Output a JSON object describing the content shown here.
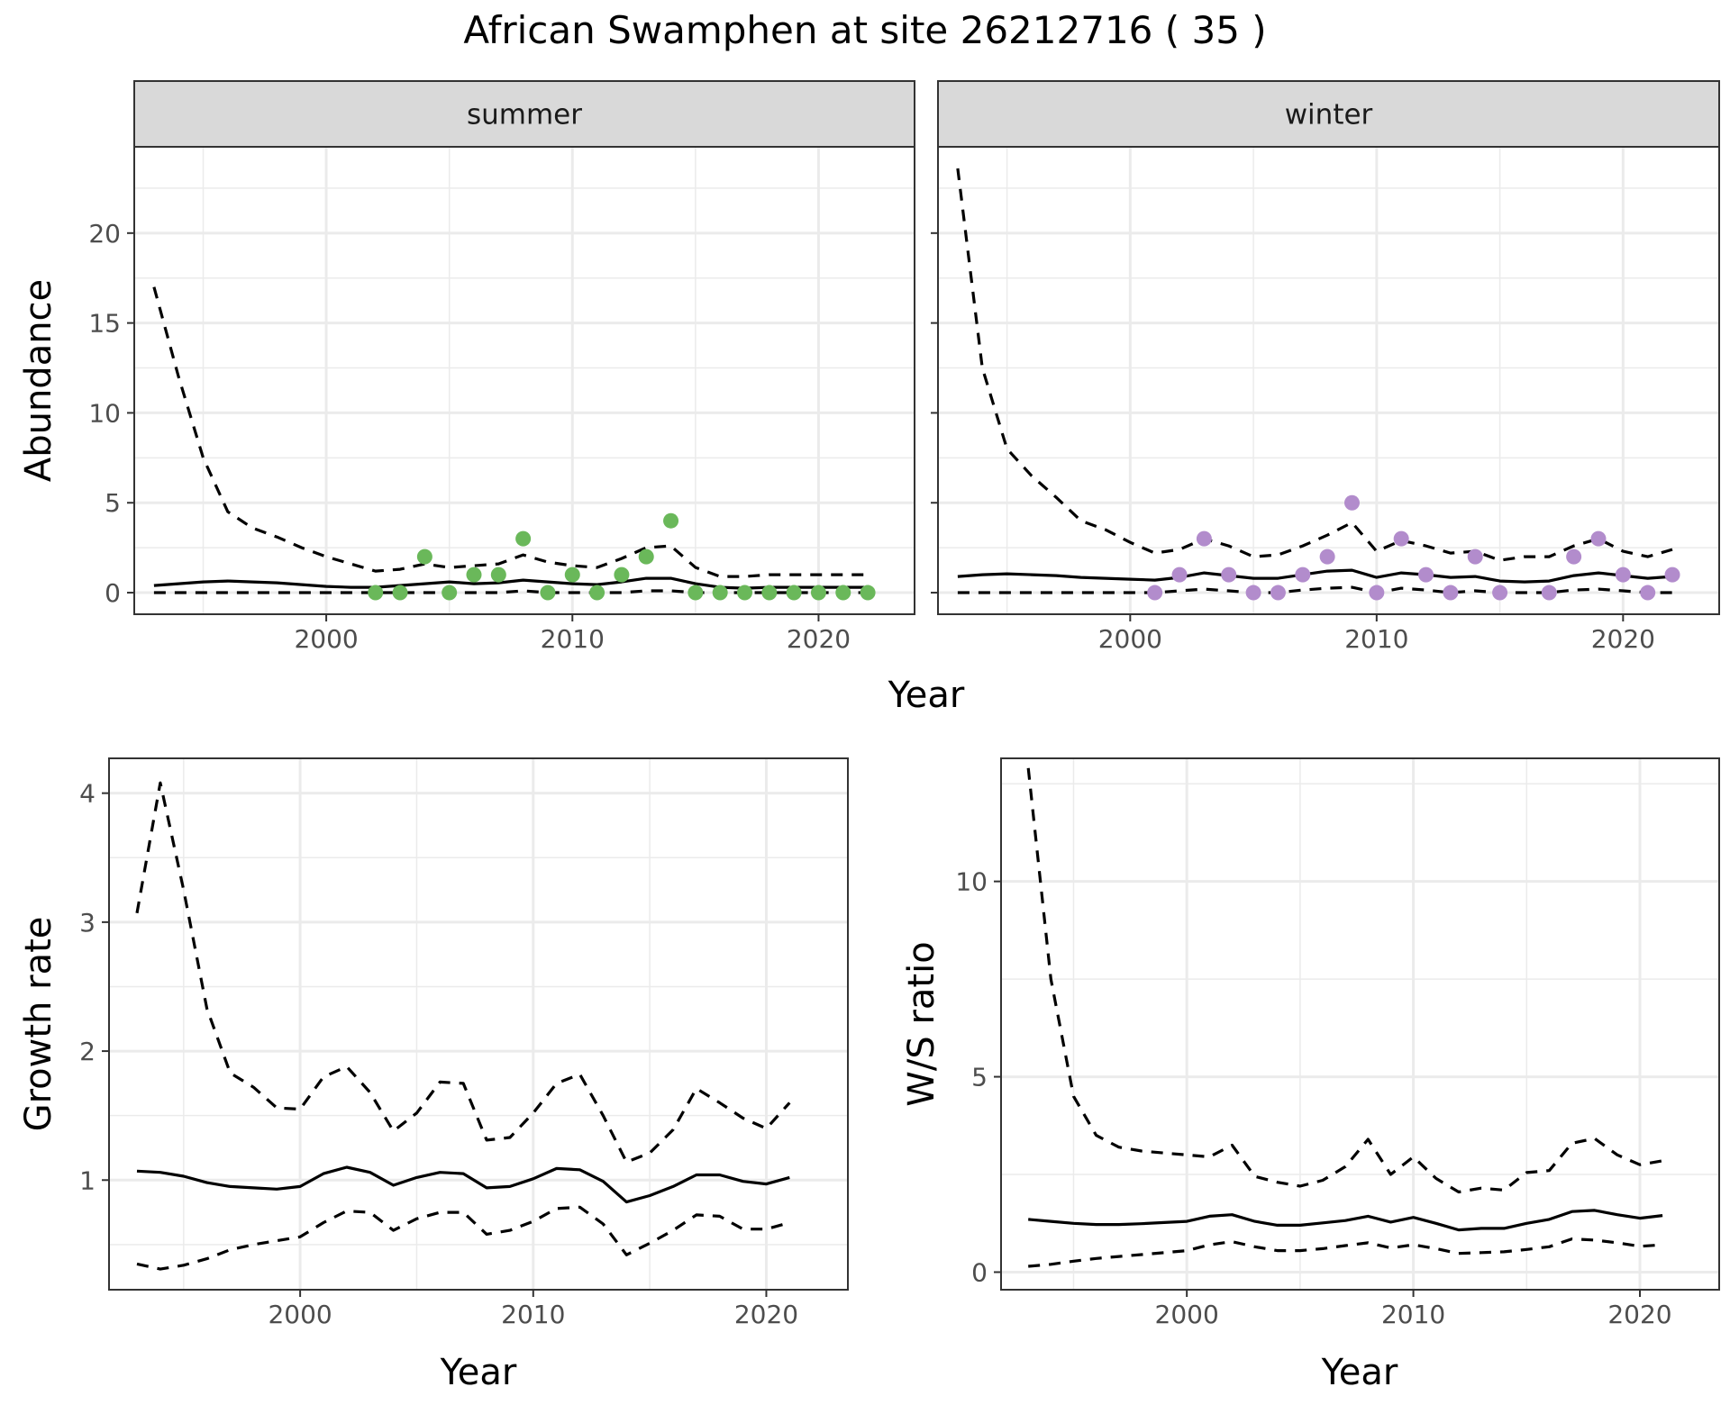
{
  "title": "African Swamphen at site 26212716 ( 35 )",
  "colors": {
    "summer_points": "#6ab85a",
    "winter_points": "#b28ccc",
    "lines": "#000000",
    "gridlines": "#ebebeb",
    "strip_fill": "#d9d9d9"
  },
  "chart_data": [
    {
      "type": "line",
      "panel": "summer",
      "strip_label": "summer",
      "xlabel": "Year",
      "ylabel": "Abundance",
      "xlim": [
        1992.2,
        2023.9
      ],
      "ylim": [
        -1.2,
        24.8
      ],
      "xticks": [
        2000,
        2010,
        2020
      ],
      "yticks": [
        0,
        5,
        10,
        15,
        20
      ],
      "grid": true,
      "x": [
        1993,
        1994,
        1995,
        1996,
        1997,
        1998,
        1999,
        2000,
        2001,
        2002,
        2003,
        2004,
        2005,
        2006,
        2007,
        2008,
        2009,
        2010,
        2011,
        2012,
        2013,
        2014,
        2015,
        2016,
        2017,
        2018,
        2019,
        2020,
        2021,
        2022
      ],
      "series": [
        {
          "style": "solid",
          "values": [
            0.4,
            0.5,
            0.6,
            0.65,
            0.6,
            0.55,
            0.45,
            0.35,
            0.3,
            0.3,
            0.4,
            0.5,
            0.6,
            0.5,
            0.55,
            0.7,
            0.6,
            0.5,
            0.45,
            0.6,
            0.8,
            0.8,
            0.5,
            0.3,
            0.25,
            0.3,
            0.3,
            0.3,
            0.3,
            0.3
          ]
        },
        {
          "style": "dashed",
          "values": [
            17,
            12,
            7.5,
            4.5,
            3.6,
            3.1,
            2.5,
            2.0,
            1.6,
            1.2,
            1.3,
            1.6,
            1.4,
            1.5,
            1.6,
            2.1,
            1.7,
            1.5,
            1.4,
            1.9,
            2.5,
            2.6,
            1.4,
            0.9,
            0.9,
            1.0,
            1.0,
            1.0,
            1.0,
            1.0
          ]
        },
        {
          "style": "dashed",
          "values": [
            0,
            0,
            0,
            0,
            0,
            0,
            0,
            0,
            0,
            0,
            0,
            0,
            0,
            0,
            0,
            0.1,
            0,
            0,
            0,
            0,
            0.1,
            0.1,
            0,
            0,
            0,
            0,
            0,
            0,
            0,
            0
          ]
        }
      ],
      "points": {
        "x": [
          2002,
          2003,
          2004,
          2005,
          2006,
          2007,
          2008,
          2009,
          2010,
          2011,
          2012,
          2013,
          2014,
          2015,
          2016,
          2017,
          2018,
          2019,
          2020,
          2021,
          2022
        ],
        "y": [
          0,
          0,
          2,
          0,
          1,
          1,
          3,
          0,
          1,
          0,
          1,
          2,
          4,
          0,
          0,
          0,
          0,
          0,
          0,
          0,
          0
        ]
      }
    },
    {
      "type": "line",
      "panel": "winter",
      "strip_label": "winter",
      "xlabel": "Year",
      "ylabel": "Abundance",
      "xlim": [
        1992.2,
        2023.9
      ],
      "ylim": [
        -1.2,
        24.8
      ],
      "xticks": [
        2000,
        2010,
        2020
      ],
      "yticks": [
        0,
        5,
        10,
        15,
        20
      ],
      "grid": true,
      "x": [
        1993,
        1994,
        1995,
        1996,
        1997,
        1998,
        1999,
        2000,
        2001,
        2002,
        2003,
        2004,
        2005,
        2006,
        2007,
        2008,
        2009,
        2010,
        2011,
        2012,
        2013,
        2014,
        2015,
        2016,
        2017,
        2018,
        2019,
        2020,
        2021,
        2022
      ],
      "series": [
        {
          "style": "solid",
          "values": [
            0.9,
            1.0,
            1.05,
            1.0,
            0.95,
            0.85,
            0.8,
            0.75,
            0.7,
            0.85,
            1.1,
            0.95,
            0.8,
            0.8,
            1.0,
            1.2,
            1.25,
            0.85,
            1.1,
            1.0,
            0.85,
            0.9,
            0.65,
            0.6,
            0.65,
            0.95,
            1.1,
            0.95,
            0.8,
            0.9
          ]
        },
        {
          "style": "dashed",
          "values": [
            23.6,
            12.5,
            8.0,
            6.5,
            5.3,
            4.0,
            3.5,
            2.8,
            2.2,
            2.4,
            3.0,
            2.6,
            2.0,
            2.1,
            2.6,
            3.2,
            3.9,
            2.3,
            2.9,
            2.6,
            2.2,
            2.3,
            1.8,
            2.0,
            2.0,
            2.6,
            3.0,
            2.3,
            2.0,
            2.4
          ]
        },
        {
          "style": "dashed",
          "values": [
            0,
            0,
            0,
            0,
            0,
            0,
            0,
            0,
            0,
            0.1,
            0.2,
            0.1,
            0,
            0,
            0.15,
            0.25,
            0.3,
            0,
            0.25,
            0.15,
            0,
            0.1,
            0,
            0,
            0,
            0.15,
            0.2,
            0.1,
            0,
            0
          ]
        }
      ],
      "points": {
        "x": [
          2001,
          2002,
          2003,
          2004,
          2005,
          2006,
          2007,
          2008,
          2009,
          2010,
          2011,
          2012,
          2013,
          2014,
          2015,
          2017,
          2018,
          2019,
          2020,
          2021,
          2022
        ],
        "y": [
          0,
          1,
          3,
          1,
          0,
          0,
          1,
          2,
          5,
          0,
          3,
          1,
          0,
          2,
          0,
          0,
          2,
          3,
          1,
          0,
          1
        ]
      }
    },
    {
      "type": "line",
      "panel": "growth",
      "xlabel": "Year",
      "ylabel": "Growth rate",
      "xlim": [
        1991.8,
        2023.5
      ],
      "ylim": [
        0.15,
        4.27
      ],
      "xticks": [
        2000,
        2010,
        2020
      ],
      "yticks": [
        1,
        2,
        3,
        4
      ],
      "grid": true,
      "x": [
        1993,
        1994,
        1995,
        1996,
        1997,
        1998,
        1999,
        2000,
        2001,
        2002,
        2003,
        2004,
        2005,
        2006,
        2007,
        2008,
        2009,
        2010,
        2011,
        2012,
        2013,
        2014,
        2015,
        2016,
        2017,
        2018,
        2019,
        2020,
        2021
      ],
      "series": [
        {
          "style": "solid",
          "values": [
            1.07,
            1.06,
            1.03,
            0.98,
            0.95,
            0.94,
            0.93,
            0.95,
            1.05,
            1.1,
            1.06,
            0.96,
            1.02,
            1.06,
            1.05,
            0.94,
            0.95,
            1.01,
            1.09,
            1.08,
            0.99,
            0.83,
            0.88,
            0.95,
            1.04,
            1.04,
            0.99,
            0.97,
            1.02
          ]
        },
        {
          "style": "dashed",
          "values": [
            3.07,
            4.08,
            3.25,
            2.33,
            1.83,
            1.72,
            1.56,
            1.55,
            1.8,
            1.88,
            1.68,
            1.38,
            1.52,
            1.76,
            1.75,
            1.31,
            1.33,
            1.52,
            1.75,
            1.82,
            1.5,
            1.14,
            1.21,
            1.39,
            1.71,
            1.6,
            1.48,
            1.4,
            1.6
          ]
        },
        {
          "style": "dashed",
          "values": [
            0.35,
            0.31,
            0.34,
            0.39,
            0.46,
            0.5,
            0.53,
            0.56,
            0.67,
            0.76,
            0.75,
            0.61,
            0.7,
            0.75,
            0.75,
            0.58,
            0.61,
            0.68,
            0.78,
            0.79,
            0.66,
            0.42,
            0.51,
            0.61,
            0.73,
            0.72,
            0.62,
            0.62,
            0.67
          ]
        }
      ]
    },
    {
      "type": "line",
      "panel": "ws_ratio",
      "xlabel": "Year",
      "ylabel": "W/S ratio",
      "xlim": [
        1991.8,
        2023.5
      ],
      "ylim": [
        -0.45,
        13.15
      ],
      "xticks": [
        2000,
        2010,
        2020
      ],
      "yticks": [
        0,
        5,
        10
      ],
      "grid": true,
      "x": [
        1993,
        1994,
        1995,
        1996,
        1997,
        1998,
        1999,
        2000,
        2001,
        2002,
        2003,
        2004,
        2005,
        2006,
        2007,
        2008,
        2009,
        2010,
        2011,
        2012,
        2013,
        2014,
        2015,
        2016,
        2017,
        2018,
        2019,
        2020,
        2021
      ],
      "series": [
        {
          "style": "solid",
          "values": [
            1.35,
            1.3,
            1.25,
            1.22,
            1.22,
            1.24,
            1.27,
            1.3,
            1.43,
            1.47,
            1.3,
            1.2,
            1.2,
            1.26,
            1.32,
            1.43,
            1.28,
            1.4,
            1.25,
            1.08,
            1.12,
            1.12,
            1.25,
            1.35,
            1.55,
            1.58,
            1.47,
            1.38,
            1.45
          ]
        },
        {
          "style": "dashed",
          "values": [
            12.9,
            7.5,
            4.5,
            3.5,
            3.2,
            3.1,
            3.05,
            3.0,
            2.95,
            3.25,
            2.45,
            2.3,
            2.2,
            2.35,
            2.7,
            3.4,
            2.5,
            2.95,
            2.4,
            2.05,
            2.15,
            2.1,
            2.55,
            2.6,
            3.3,
            3.42,
            3.0,
            2.75,
            2.85
          ]
        },
        {
          "style": "dashed",
          "values": [
            0.15,
            0.2,
            0.28,
            0.35,
            0.4,
            0.45,
            0.5,
            0.55,
            0.7,
            0.78,
            0.65,
            0.55,
            0.55,
            0.6,
            0.68,
            0.75,
            0.62,
            0.7,
            0.6,
            0.48,
            0.5,
            0.52,
            0.58,
            0.65,
            0.85,
            0.82,
            0.75,
            0.66,
            0.7
          ]
        }
      ]
    }
  ]
}
